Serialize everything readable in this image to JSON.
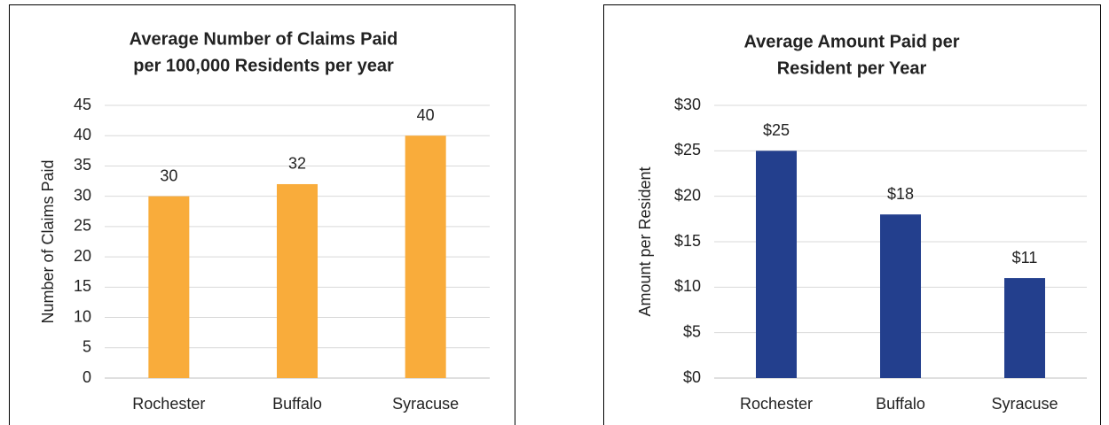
{
  "chart_data": [
    {
      "type": "bar",
      "title": [
        "Average Number of Claims Paid",
        "per 100,000 Residents per year"
      ],
      "y_label": "Number of Claims Paid",
      "categories": [
        "Rochester",
        "Buffalo",
        "Syracuse"
      ],
      "values": [
        30,
        32,
        40
      ],
      "color": "#f9ac3b",
      "ylim": [
        0,
        45
      ],
      "yticks": [
        0,
        5,
        10,
        15,
        20,
        25,
        30,
        35,
        40,
        45
      ],
      "grid": true
    },
    {
      "type": "bar",
      "title": [
        "Average Amount Paid per",
        "Resident per Year"
      ],
      "y_label": "Amount per Resident",
      "categories": [
        "Rochester",
        "Buffalo",
        "Syracuse"
      ],
      "values": [
        25,
        18,
        11
      ],
      "value_labels": [
        "$25",
        "$18",
        "$11"
      ],
      "color": "#233f8d",
      "ylim": [
        0,
        30
      ],
      "yticks": [
        {
          "value": 0,
          "label": "$0"
        },
        {
          "value": 5,
          "label": "$5"
        },
        {
          "value": 10,
          "label": "$10"
        },
        {
          "value": 15,
          "label": "$15"
        },
        {
          "value": 20,
          "label": "$20"
        },
        {
          "value": 25,
          "label": "$25"
        },
        {
          "value": 30,
          "label": "$30"
        }
      ],
      "grid": true
    }
  ]
}
